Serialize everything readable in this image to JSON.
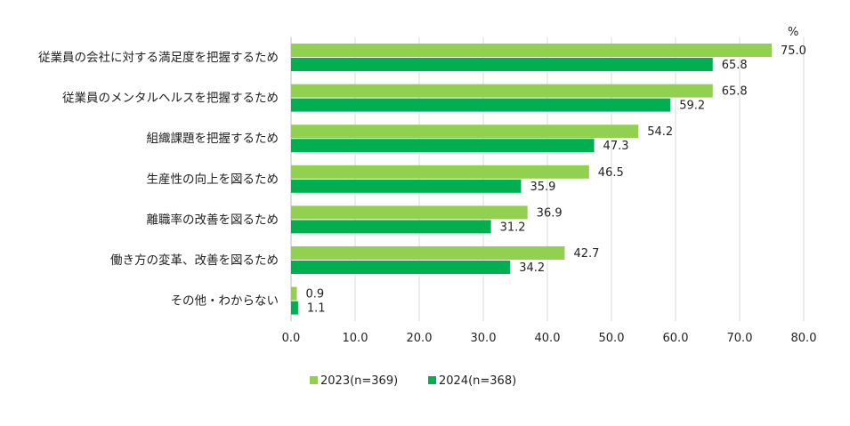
{
  "chart_data": {
    "type": "bar",
    "orientation": "horizontal",
    "unit_label": "%",
    "categories": [
      "従業員の会社に対する満足度を把握するため",
      "従業員のメンタルヘルスを把握するため",
      "組織課題を把握するため",
      "生産性の向上を図るため",
      "離職率の改善を図るため",
      "働き方の変革、改善を図るため",
      "その他・わからない"
    ],
    "series": [
      {
        "name": "2023(n=369)",
        "color": "#92D050",
        "values": [
          75.0,
          65.8,
          54.2,
          46.5,
          36.9,
          42.7,
          0.9
        ]
      },
      {
        "name": "2024(n=368)",
        "color": "#00B050",
        "values": [
          65.8,
          59.2,
          47.3,
          35.9,
          31.2,
          34.2,
          1.1
        ]
      }
    ],
    "xlim": [
      0,
      80
    ],
    "xticks": [
      "0.0",
      "10.0",
      "20.0",
      "30.0",
      "40.0",
      "50.0",
      "60.0",
      "70.0",
      "80.0"
    ],
    "grid": true,
    "legend_position": "bottom"
  }
}
